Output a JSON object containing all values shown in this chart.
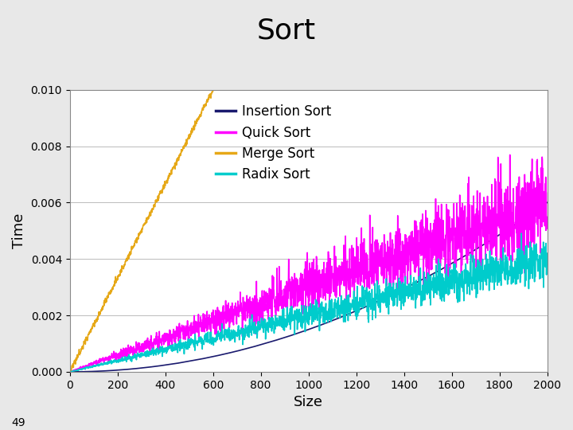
{
  "title": "Sort",
  "xlabel": "Size",
  "ylabel": "Time",
  "xlim": [
    0,
    2000
  ],
  "ylim": [
    0,
    0.01
  ],
  "yticks": [
    0.0,
    0.002,
    0.004,
    0.006,
    0.008,
    0.01
  ],
  "xticks": [
    0,
    200,
    400,
    600,
    800,
    1000,
    1200,
    1400,
    1600,
    1800,
    2000
  ],
  "legend": [
    "Insertion Sort",
    "Quick Sort",
    "Merge Sort",
    "Radix Sort"
  ],
  "colors": {
    "insertion": "#1a1a6e",
    "quick": "#ff00ff",
    "merge": "#e6a817",
    "radix": "#00cccc"
  },
  "bg_color": "#e8e8e8",
  "plot_bg": "#ffffff",
  "title_fontsize": 26,
  "axis_fontsize": 13,
  "legend_fontsize": 12,
  "tick_fontsize": 10,
  "n_points": 2001,
  "seed": 42,
  "line_width": 1.2
}
